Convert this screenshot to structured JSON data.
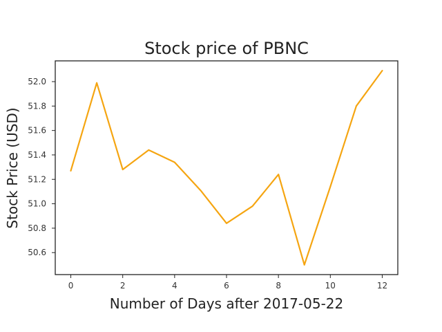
{
  "chart_data": {
    "type": "line",
    "title": "Stock price of PBNC",
    "xlabel": "Number of Days after 2017-05-22",
    "ylabel": "Stock Price (USD)",
    "x": [
      0,
      1,
      2,
      3,
      4,
      5,
      6,
      7,
      8,
      9,
      10,
      11,
      12
    ],
    "series": [
      {
        "values": [
          51.27,
          51.99,
          51.28,
          51.44,
          51.34,
          51.11,
          50.84,
          50.98,
          51.24,
          50.5,
          51.14,
          51.8,
          52.09
        ],
        "color": "#f5a511"
      }
    ],
    "xlim": [
      -0.6,
      12.6
    ],
    "ylim": [
      50.42,
      52.17
    ],
    "xticks": [
      "0",
      "2",
      "4",
      "6",
      "8",
      "10",
      "12"
    ],
    "yticks": [
      "50.6",
      "50.8",
      "51.0",
      "51.2",
      "51.4",
      "51.6",
      "51.8",
      "52.0"
    ],
    "grid": false,
    "legend": false
  }
}
